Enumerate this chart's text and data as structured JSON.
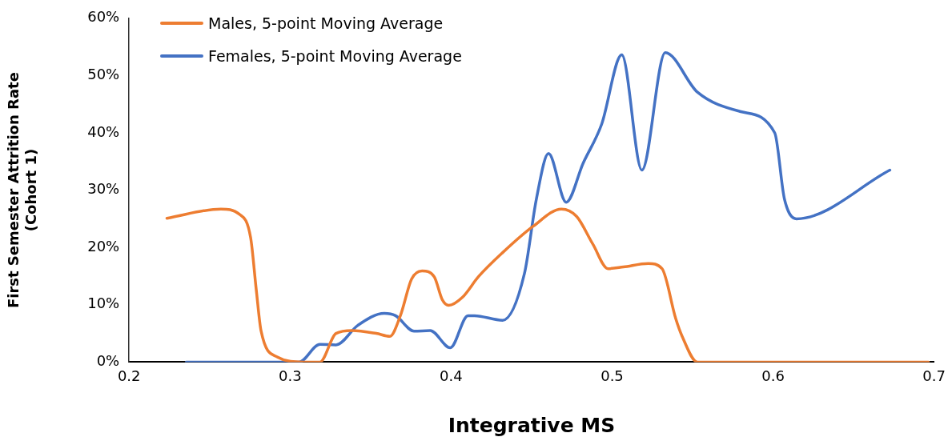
{
  "chart_data": {
    "type": "line",
    "xlabel": "Integrative MS",
    "ylabel": "First Semester Attrition Rate\n(Cohort 1)",
    "xlim": [
      0.2,
      0.7
    ],
    "xticks": [
      0.2,
      0.3,
      0.4,
      0.5,
      0.6,
      0.7
    ],
    "ylim": [
      0,
      60
    ],
    "yticks": [
      {
        "value": 0,
        "label": "0%"
      },
      {
        "value": 10,
        "label": "10%"
      },
      {
        "value": 20,
        "label": "20%"
      },
      {
        "value": 30,
        "label": "30%"
      },
      {
        "value": 40,
        "label": "40%"
      },
      {
        "value": 50,
        "label": "50%"
      },
      {
        "value": 60,
        "label": "60%"
      }
    ],
    "grid": false,
    "legend": "top left",
    "marker": "none",
    "line_style": "solid",
    "series": [
      {
        "name": "Males, 5-point Moving Average",
        "color": "#ed7d31",
        "x": [
          0.2235,
          0.257,
          0.2685,
          0.2755,
          0.279,
          0.282,
          0.292,
          0.3085,
          0.3185,
          0.3285,
          0.3385,
          0.3535,
          0.362,
          0.3685,
          0.3755,
          0.382,
          0.3895,
          0.3945,
          0.3985,
          0.407,
          0.417,
          0.432,
          0.451,
          0.4685,
          0.478,
          0.488,
          0.4975,
          0.507,
          0.5225,
          0.531,
          0.5395,
          0.5435,
          0.553,
          0.588,
          0.6965
        ],
        "values": [
          25.1,
          26.7,
          25.8,
          21.7,
          12.6,
          5.4,
          0.9,
          0,
          0,
          5,
          5.5,
          5,
          4.5,
          8.1,
          14.5,
          15.9,
          14.9,
          10.9,
          9.9,
          11.3,
          14.9,
          19.1,
          23.7,
          26.7,
          25.4,
          20.6,
          16.3,
          16.6,
          17.2,
          16.3,
          7.6,
          4.5,
          0,
          0,
          0
        ]
      },
      {
        "name": "Females, 5-point Moving Average",
        "color": "#4472c4",
        "x": [
          0.2355,
          0.3055,
          0.3185,
          0.3285,
          0.342,
          0.3585,
          0.3655,
          0.377,
          0.387,
          0.3995,
          0.4105,
          0.4145,
          0.432,
          0.4455,
          0.453,
          0.4605,
          0.4715,
          0.482,
          0.4935,
          0.506,
          0.5185,
          0.533,
          0.553,
          0.58,
          0.601,
          0.607,
          0.6145,
          0.6725
        ],
        "values": [
          0,
          0,
          3.1,
          3,
          6.4,
          8.5,
          8.1,
          5.4,
          5.5,
          2.5,
          8.1,
          8.1,
          7.3,
          15.4,
          28.5,
          36.4,
          27.9,
          34.7,
          41.5,
          53.6,
          33.5,
          54,
          47.1,
          43.7,
          40,
          28.5,
          25,
          33.5
        ]
      }
    ]
  }
}
